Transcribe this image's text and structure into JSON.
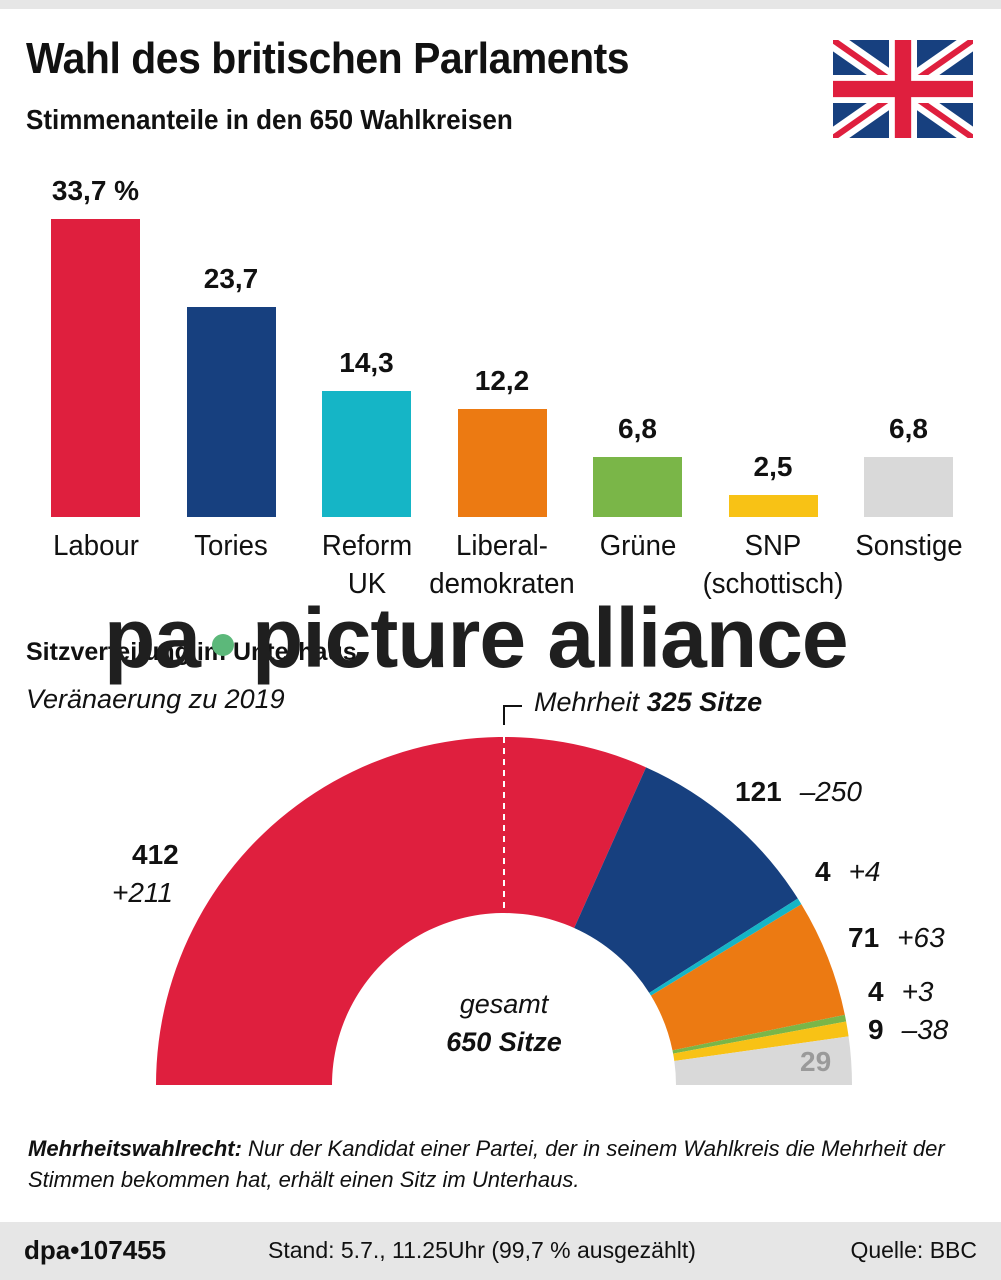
{
  "header": {
    "title": "Wahl des britischen Parlaments",
    "subtitle": "Stimmenanteile in den 650 Wahlkreisen"
  },
  "watermark": {
    "left": "pa",
    "right": "picture alliance"
  },
  "seats_section": {
    "title": "Sitzverteilung im Unterhaus",
    "subtitle": "Veränaerung zu 2019",
    "majority_prefix": "Mehrheit",
    "majority_value": "325 Sitze",
    "center_top": "gesamt",
    "center_bottom": "650 Sitze"
  },
  "note": {
    "bold": "Mehrheitswahlrecht:",
    "text": " Nur der Kandidat einer Partei, der in seinem Wahlkreis die Mehrheit der Stimmen bekommen hat, erhält einen Sitz im Unterhaus."
  },
  "footer": {
    "id": "dpa•107455",
    "stand": "Stand:  5.7., 11.25Uhr (99,7 % ausgezählt)",
    "source": "Quelle: BBC"
  },
  "chart_data": [
    {
      "type": "bar",
      "title": "Stimmenanteile in den 650 Wahlkreisen",
      "categories": [
        "Labour",
        "Tories",
        "Reform UK",
        "Liberaldemokraten",
        "Grüne",
        "SNP (schottisch)",
        "Sonstige"
      ],
      "label_lines": [
        [
          "Labour"
        ],
        [
          "Tories"
        ],
        [
          "Reform",
          "UK"
        ],
        [
          "Liberal-",
          "demokraten"
        ],
        [
          "Grüne"
        ],
        [
          "SNP",
          "(schottisch)"
        ],
        [
          "Sonstige"
        ]
      ],
      "values": [
        33.7,
        23.7,
        14.3,
        12.2,
        6.8,
        2.5,
        6.8
      ],
      "value_labels": [
        "33,7 %",
        "23,7",
        "14,3",
        "12,2",
        "6,8",
        "2,5",
        "6,8"
      ],
      "colors": [
        "#df1f3e",
        "#17407f",
        "#15b5c6",
        "#ec7a12",
        "#7ab648",
        "#f8c215",
        "#d9d9d9"
      ],
      "ylabel": "Prozent",
      "grid": false
    },
    {
      "type": "pie",
      "subtype": "hemicycle",
      "title": "Sitzverteilung im Unterhaus",
      "subtitle": "Veränderung zu 2019",
      "total": 650,
      "majority": 325,
      "categories": [
        "Labour",
        "Tories",
        "Reform UK",
        "Liberaldemokraten",
        "Grüne",
        "SNP",
        "Sonstige"
      ],
      "values": [
        412,
        121,
        4,
        71,
        4,
        9,
        29
      ],
      "change": [
        "+211",
        "–250",
        "+4",
        "+63",
        "+3",
        "–38",
        ""
      ],
      "colors": [
        "#df1f3e",
        "#17407f",
        "#15b5c6",
        "#ec7a12",
        "#7ab648",
        "#f8c215",
        "#d9d9d9"
      ]
    }
  ]
}
